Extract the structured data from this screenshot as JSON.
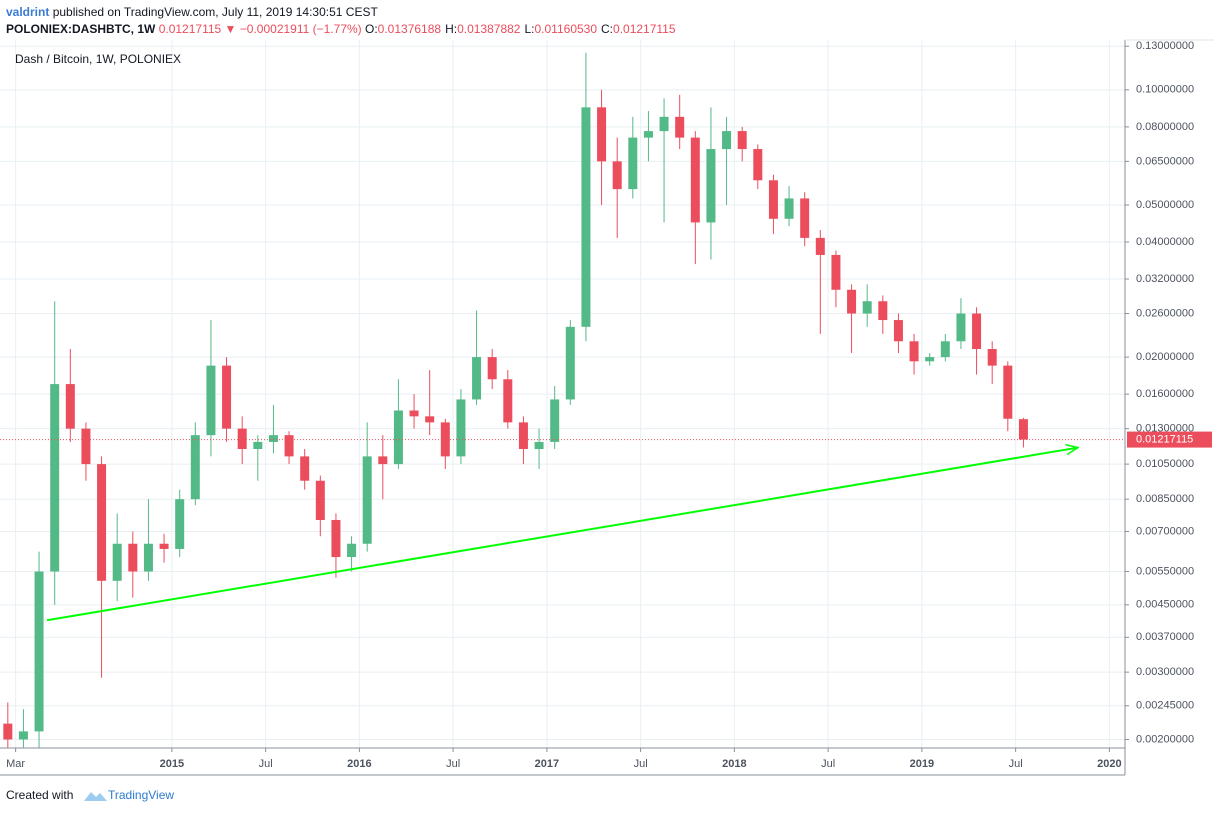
{
  "header": {
    "author": "valdrint",
    "published": "published on TradingView.com, July 11, 2019 14:30:51 CEST",
    "symbol": "POLONIEX:DASHBTC, 1W",
    "last": "0.01217115",
    "change": "−0.00021911 (−1.77%)",
    "ohlc": [
      {
        "label": "O:",
        "value": "0.01376188"
      },
      {
        "label": "H:",
        "value": "0.01387882"
      },
      {
        "label": "L:",
        "value": "0.01160530"
      },
      {
        "label": "C:",
        "value": "0.01217115"
      }
    ]
  },
  "chart_data": {
    "type": "candlestick",
    "title": "Dash / Bitcoin, 1W, POLONIEX",
    "x": [
      "2014-02",
      "2014-03",
      "2014-04",
      "2014-05",
      "2014-06",
      "2014-07",
      "2014-08",
      "2014-09",
      "2014-10",
      "2014-11",
      "2014-12",
      "2015-01",
      "2015-02",
      "2015-03",
      "2015-04",
      "2015-05",
      "2015-06",
      "2015-07",
      "2015-08",
      "2015-09",
      "2015-10",
      "2015-11",
      "2015-12",
      "2016-01",
      "2016-02",
      "2016-03",
      "2016-04",
      "2016-05",
      "2016-06",
      "2016-07",
      "2016-08",
      "2016-09",
      "2016-10",
      "2016-11",
      "2016-12",
      "2017-01",
      "2017-02",
      "2017-03",
      "2017-04",
      "2017-05",
      "2017-06",
      "2017-07",
      "2017-08",
      "2017-09",
      "2017-10",
      "2017-11",
      "2017-12",
      "2018-01",
      "2018-02",
      "2018-03",
      "2018-04",
      "2018-05",
      "2018-06",
      "2018-07",
      "2018-08",
      "2018-09",
      "2018-10",
      "2018-11",
      "2018-12",
      "2019-01",
      "2019-02",
      "2019-03",
      "2019-04",
      "2019-05",
      "2019-06",
      "2019-07"
    ],
    "open": [
      0.0022,
      0.002,
      0.0021,
      0.0055,
      0.017,
      0.013,
      0.0105,
      0.0052,
      0.0065,
      0.0055,
      0.0065,
      0.0063,
      0.0085,
      0.0125,
      0.019,
      0.013,
      0.0115,
      0.012,
      0.0125,
      0.011,
      0.0095,
      0.0075,
      0.006,
      0.0065,
      0.011,
      0.0105,
      0.0145,
      0.014,
      0.0135,
      0.011,
      0.0155,
      0.02,
      0.0175,
      0.0135,
      0.0115,
      0.012,
      0.0155,
      0.024,
      0.09,
      0.065,
      0.055,
      0.075,
      0.078,
      0.085,
      0.075,
      0.045,
      0.07,
      0.078,
      0.07,
      0.058,
      0.046,
      0.052,
      0.041,
      0.037,
      0.03,
      0.026,
      0.028,
      0.025,
      0.022,
      0.0195,
      0.02,
      0.022,
      0.026,
      0.021,
      0.019,
      0.01376188
    ],
    "high": [
      0.0025,
      0.0024,
      0.0062,
      0.028,
      0.021,
      0.0135,
      0.011,
      0.0078,
      0.007,
      0.0085,
      0.0069,
      0.009,
      0.0135,
      0.025,
      0.02,
      0.014,
      0.0125,
      0.015,
      0.0128,
      0.0115,
      0.0098,
      0.0078,
      0.0068,
      0.0135,
      0.0125,
      0.0175,
      0.016,
      0.0185,
      0.0138,
      0.0165,
      0.0265,
      0.021,
      0.0185,
      0.014,
      0.013,
      0.0168,
      0.025,
      0.125,
      0.1,
      0.075,
      0.085,
      0.088,
      0.095,
      0.097,
      0.078,
      0.09,
      0.085,
      0.08,
      0.072,
      0.06,
      0.056,
      0.054,
      0.043,
      0.038,
      0.031,
      0.031,
      0.029,
      0.026,
      0.023,
      0.0205,
      0.023,
      0.0285,
      0.027,
      0.022,
      0.0195,
      0.01387882
    ],
    "low": [
      0.0019,
      0.0019,
      0.0019,
      0.0045,
      0.012,
      0.0095,
      0.0029,
      0.0046,
      0.0047,
      0.0052,
      0.0058,
      0.006,
      0.0082,
      0.011,
      0.012,
      0.0105,
      0.0095,
      0.0112,
      0.0105,
      0.009,
      0.0068,
      0.0053,
      0.0055,
      0.0062,
      0.0085,
      0.0102,
      0.013,
      0.0125,
      0.0102,
      0.0105,
      0.015,
      0.0165,
      0.013,
      0.0105,
      0.0102,
      0.0115,
      0.015,
      0.022,
      0.05,
      0.041,
      0.052,
      0.065,
      0.045,
      0.07,
      0.035,
      0.036,
      0.05,
      0.065,
      0.055,
      0.042,
      0.044,
      0.039,
      0.023,
      0.027,
      0.0205,
      0.024,
      0.023,
      0.0205,
      0.018,
      0.019,
      0.0195,
      0.021,
      0.018,
      0.017,
      0.0128,
      0.0116053
    ],
    "close": [
      0.002,
      0.0021,
      0.0055,
      0.017,
      0.013,
      0.0105,
      0.0052,
      0.0065,
      0.0055,
      0.0065,
      0.0063,
      0.0085,
      0.0125,
      0.019,
      0.013,
      0.0115,
      0.012,
      0.0125,
      0.011,
      0.0095,
      0.0075,
      0.006,
      0.0065,
      0.011,
      0.0105,
      0.0145,
      0.014,
      0.0135,
      0.011,
      0.0155,
      0.02,
      0.0175,
      0.0135,
      0.0115,
      0.012,
      0.0155,
      0.024,
      0.09,
      0.065,
      0.055,
      0.075,
      0.078,
      0.085,
      0.075,
      0.045,
      0.07,
      0.078,
      0.07,
      0.058,
      0.046,
      0.052,
      0.041,
      0.037,
      0.03,
      0.026,
      0.028,
      0.025,
      0.022,
      0.0195,
      0.02,
      0.022,
      0.026,
      0.021,
      0.019,
      0.0138,
      0.01217115
    ],
    "up_color": "#53b987",
    "down_color": "#eb4d5c",
    "xlim": [
      "2014-02",
      "2020-02"
    ],
    "xticks": [
      {
        "value": "2014-03",
        "label": "Mar"
      },
      {
        "value": "2015-01",
        "label": "2015"
      },
      {
        "value": "2015-07",
        "label": "Jul"
      },
      {
        "value": "2016-01",
        "label": "2016"
      },
      {
        "value": "2016-07",
        "label": "Jul"
      },
      {
        "value": "2017-01",
        "label": "2017"
      },
      {
        "value": "2017-07",
        "label": "Jul"
      },
      {
        "value": "2018-01",
        "label": "2018"
      },
      {
        "value": "2018-07",
        "label": "Jul"
      },
      {
        "value": "2019-01",
        "label": "2019"
      },
      {
        "value": "2019-07",
        "label": "Jul"
      },
      {
        "value": "2020-01",
        "label": "2020"
      }
    ],
    "ylim": [
      0.0019,
      0.135
    ],
    "log_scale": true,
    "grid": true,
    "yticks": [
      {
        "value": 0.13,
        "label": "0.13000000"
      },
      {
        "value": 0.1,
        "label": "0.10000000"
      },
      {
        "value": 0.08,
        "label": "0.08000000"
      },
      {
        "value": 0.065,
        "label": "0.06500000"
      },
      {
        "value": 0.05,
        "label": "0.05000000"
      },
      {
        "value": 0.04,
        "label": "0.04000000"
      },
      {
        "value": 0.032,
        "label": "0.03200000"
      },
      {
        "value": 0.026,
        "label": "0.02600000"
      },
      {
        "value": 0.02,
        "label": "0.02000000"
      },
      {
        "value": 0.016,
        "label": "0.01600000"
      },
      {
        "value": 0.013,
        "label": "0.01300000"
      },
      {
        "value": 0.0105,
        "label": "0.01050000"
      },
      {
        "value": 0.0085,
        "label": "0.00850000"
      },
      {
        "value": 0.007,
        "label": "0.00700000"
      },
      {
        "value": 0.0055,
        "label": "0.00550000"
      },
      {
        "value": 0.0045,
        "label": "0.00450000"
      },
      {
        "value": 0.0037,
        "label": "0.00370000"
      },
      {
        "value": 0.003,
        "label": "0.00300000"
      },
      {
        "value": 0.00245,
        "label": "0.00245000"
      },
      {
        "value": 0.002,
        "label": "0.00200000"
      }
    ],
    "trendline": {
      "x": [
        "2014-05",
        "2019-11"
      ],
      "values": [
        0.0041,
        0.0116
      ],
      "color": "#00ff00"
    }
  },
  "footer": {
    "created": "Created with",
    "brand": "TradingView"
  }
}
